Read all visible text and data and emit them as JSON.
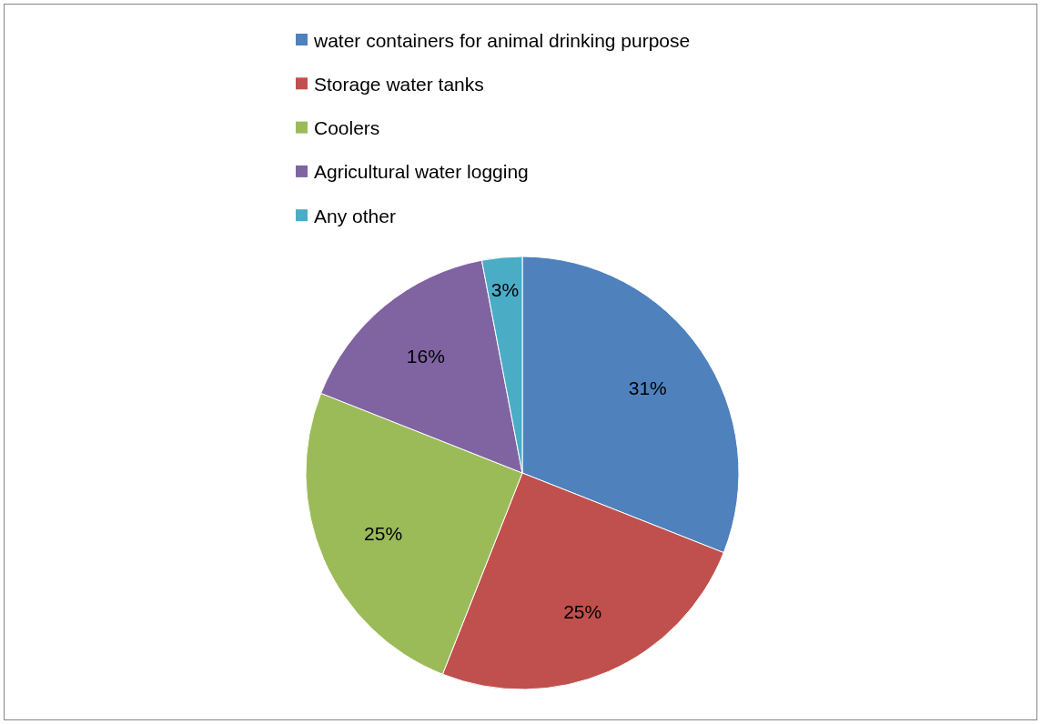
{
  "chart_data": {
    "type": "pie",
    "categories": [
      "water containers for animal drinking purpose",
      "Storage water tanks",
      "Coolers",
      "Agricultural water logging",
      "Any other"
    ],
    "values": [
      31,
      25,
      25,
      16,
      3
    ],
    "colors": [
      "#4f81bd",
      "#c0504d",
      "#9bbb59",
      "#8064a2",
      "#4bacc6"
    ],
    "value_labels": [
      "31%",
      "25%",
      "25%",
      "16%",
      "3%"
    ],
    "legend": "top"
  }
}
